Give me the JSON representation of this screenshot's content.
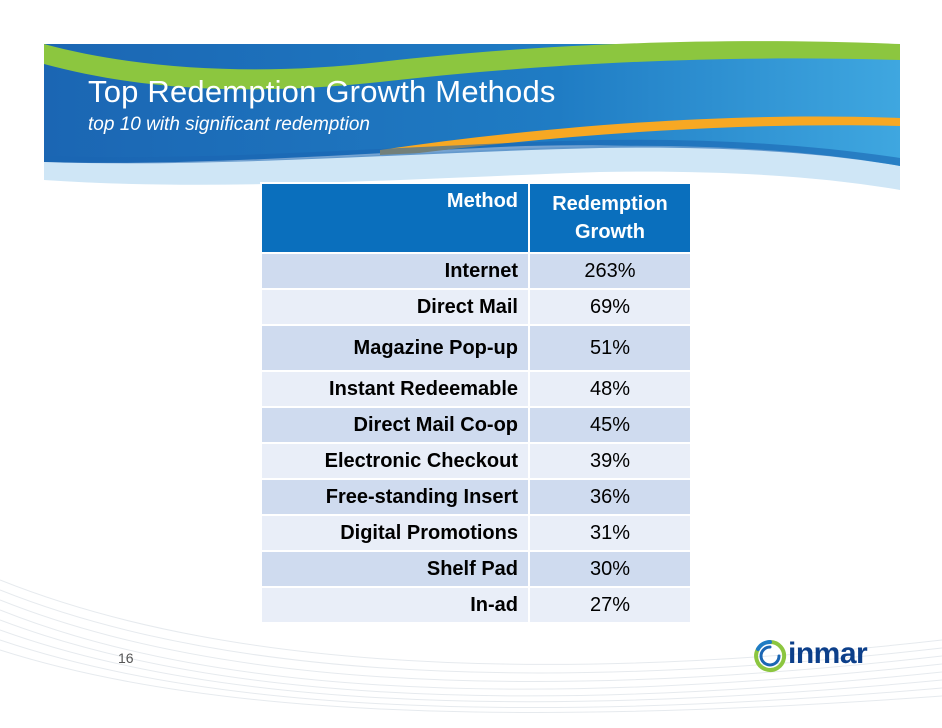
{
  "slide": {
    "title": "Top Redemption Growth Methods",
    "subtitle": "top 10 with significant redemption",
    "page_number": "16",
    "brand": "inmar"
  },
  "table": {
    "headers": {
      "method": "Method",
      "growth_line1": "Redemption",
      "growth_line2": "Growth"
    },
    "rows": [
      {
        "method": "Internet",
        "growth": "263%"
      },
      {
        "method": "Direct Mail",
        "growth": "69%"
      },
      {
        "method": "Magazine Pop-up",
        "growth": "51%"
      },
      {
        "method": "Instant Redeemable",
        "growth": "48%"
      },
      {
        "method": "Direct Mail Co-op",
        "growth": "45%"
      },
      {
        "method": "Electronic Checkout",
        "growth": "39%"
      },
      {
        "method": "Free-standing Insert",
        "growth": "36%"
      },
      {
        "method": "Digital Promotions",
        "growth": "31%"
      },
      {
        "method": "Shelf Pad",
        "growth": "30%"
      },
      {
        "method": "In-ad",
        "growth": "27%"
      }
    ]
  },
  "colors": {
    "header_blue": "#0a6fbd",
    "row_odd": "#cfdbef",
    "row_even": "#e9eef8",
    "banner_green": "#8cc63f",
    "banner_orange": "#f7a823",
    "brand_navy": "#0c3f8a"
  }
}
